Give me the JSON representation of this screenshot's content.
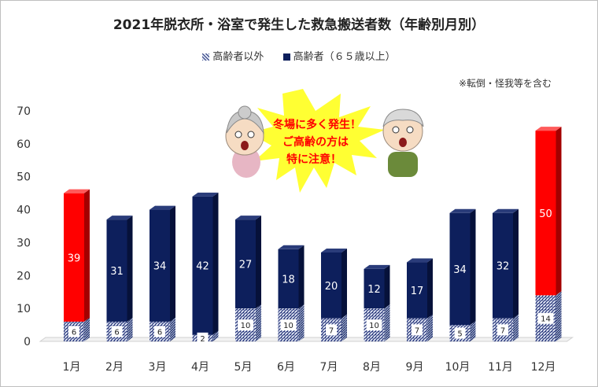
{
  "chart_data": {
    "type": "bar",
    "stacked": true,
    "title": "2021年脱衣所・浴室で発生した救急搬送者数（年齢別月別）",
    "note": "※転倒・怪我等を含む",
    "categories": [
      "1月",
      "2月",
      "3月",
      "4月",
      "5月",
      "6月",
      "7月",
      "8月",
      "9月",
      "10月",
      "11月",
      "12月"
    ],
    "series": [
      {
        "name": "高齢者以外",
        "values": [
          6,
          6,
          6,
          2,
          10,
          10,
          7,
          10,
          7,
          5,
          7,
          14
        ]
      },
      {
        "name": "高齢者（６５歳以上）",
        "values": [
          39,
          31,
          34,
          42,
          27,
          18,
          20,
          12,
          17,
          34,
          32,
          50
        ]
      }
    ],
    "highlight_categories": [
      "1月",
      "12月"
    ],
    "colors": {
      "elderly": "#0d1f5c",
      "highlight": "#ff0000",
      "other": "#27357a",
      "callout": "#ffff33",
      "callout_text": "#ff0000"
    },
    "ylim": [
      0,
      70
    ],
    "yticks": [
      0,
      10,
      20,
      30,
      40,
      50,
      60,
      70
    ],
    "grid": false,
    "legend_position": "top"
  },
  "callout": {
    "line1": "冬場に多く発生！",
    "line2": "ご高齢の方は",
    "line3": "特に注意！"
  },
  "illustrations": {
    "left": "elderly-woman-icon",
    "right": "elderly-man-icon"
  }
}
